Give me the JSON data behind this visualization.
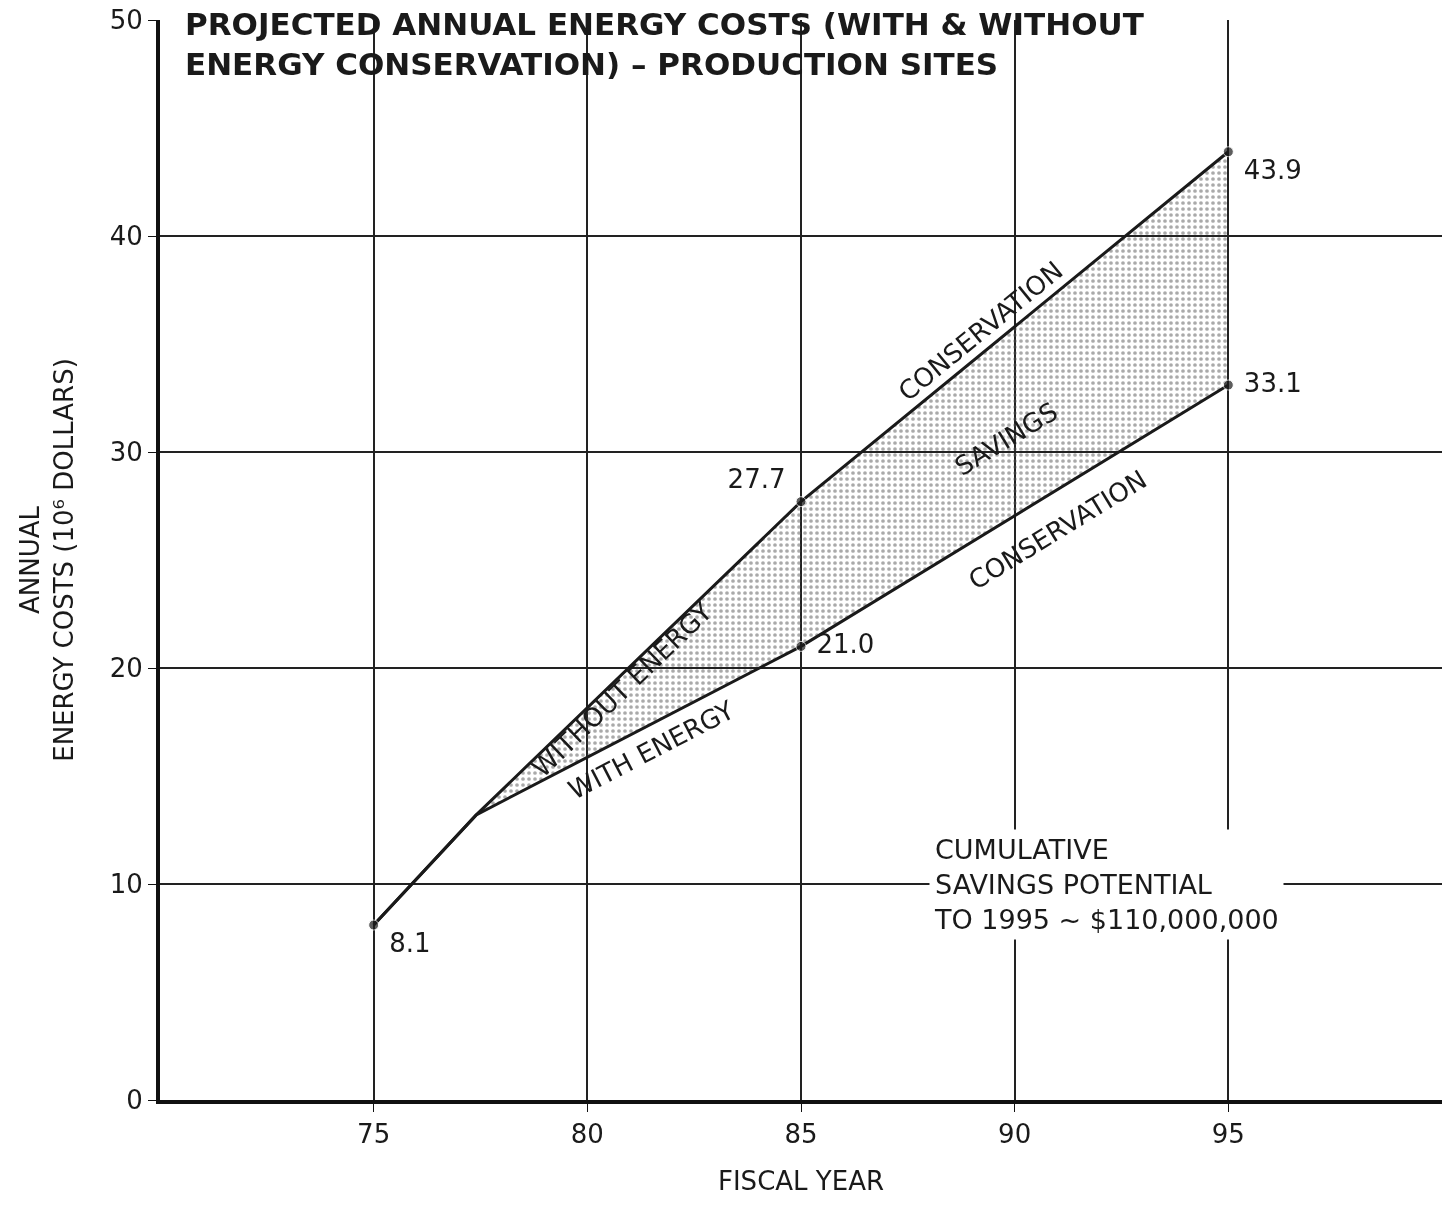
{
  "chart_data": {
    "type": "line",
    "title": "PROJECTED ANNUAL ENERGY COSTS (WITH & WITHOUT\nENERGY CONSERVATION) – PRODUCTION SITES",
    "xlabel": "FISCAL YEAR",
    "ylabel": "ANNUAL\nENERGY COSTS (10⁶ DOLLARS)",
    "xlim": [
      70,
      100
    ],
    "xticks": [
      75,
      80,
      85,
      90,
      95
    ],
    "ylim": [
      0,
      50
    ],
    "yticks": [
      0,
      10,
      20,
      30,
      40,
      50
    ],
    "grid": true,
    "marker": "circle",
    "line_style": "solid",
    "series": [
      {
        "color": "#1a1a1a",
        "x": [
          75,
          77.4,
          85,
          95
        ],
        "values": [
          8.1,
          13.2,
          27.7,
          43.9
        ],
        "value_labels": [
          null,
          null,
          "27.7",
          "43.9"
        ],
        "lower": [
          null,
          13.2,
          21.0,
          33.1
        ],
        "upper": [
          null,
          13.2,
          27.7,
          43.9
        ]
      },
      {
        "color": "#1a1a1a",
        "x": [
          75,
          77.4,
          85,
          95
        ],
        "values": [
          8.1,
          13.2,
          21.0,
          33.1
        ],
        "value_labels": [
          "8.1",
          null,
          "21.0",
          "33.1"
        ]
      }
    ],
    "annotations": [
      "WITHOUT ENERGY",
      "CONSERVATION",
      "SAVINGS",
      "WITH ENERGY",
      "CONSERVATION",
      "CUMULATIVE\nSAVINGS POTENTIAL\nTO 1995 ~ $110,000,000"
    ]
  }
}
